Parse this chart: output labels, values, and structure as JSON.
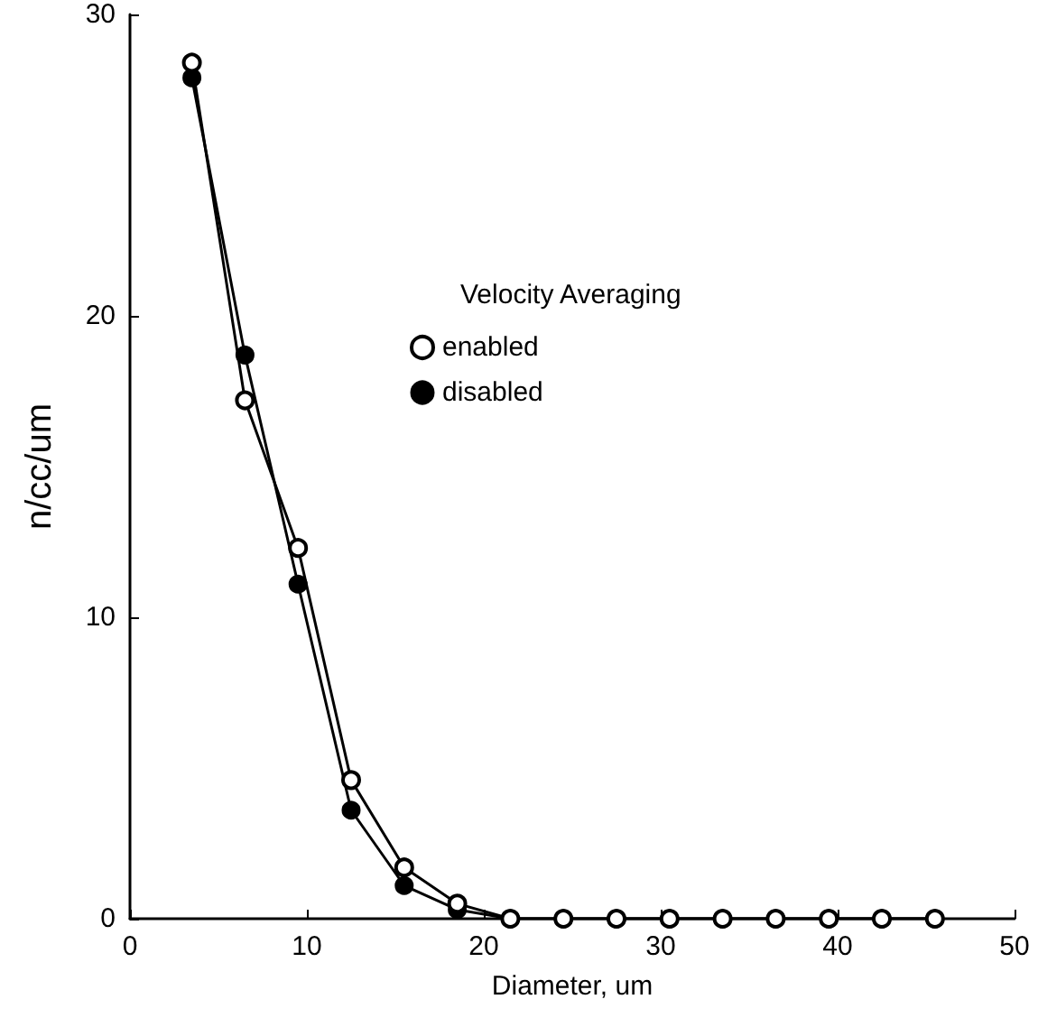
{
  "chart_data": {
    "type": "line",
    "xlabel": "Diameter, um",
    "ylabel": "n/cc/um",
    "legend_title": "Velocity Averaging",
    "x": [
      3.5,
      6.5,
      9.5,
      12.5,
      15.5,
      18.5,
      21.5,
      24.5,
      27.5,
      30.5,
      33.5,
      36.5,
      39.5,
      42.5,
      45.5
    ],
    "series": [
      {
        "name": "enabled",
        "color": "#000000",
        "values": [
          28.4,
          17.2,
          12.3,
          4.6,
          1.7,
          0.5,
          0,
          0,
          0,
          0,
          0,
          0,
          0,
          0,
          0
        ]
      },
      {
        "name": "disabled",
        "color": "#000000",
        "values": [
          27.9,
          18.7,
          11.1,
          3.6,
          1.1,
          0.3,
          0,
          0,
          0,
          0,
          0,
          0,
          0,
          0,
          0
        ]
      }
    ],
    "xlim": [
      0,
      50
    ],
    "xticks": [
      0,
      10,
      20,
      30,
      40,
      50
    ],
    "ylim": [
      0,
      30
    ],
    "yticks": [
      0,
      10,
      20,
      30
    ],
    "grid": false,
    "legend": "top",
    "marker": "circle",
    "line_style": "solid"
  }
}
